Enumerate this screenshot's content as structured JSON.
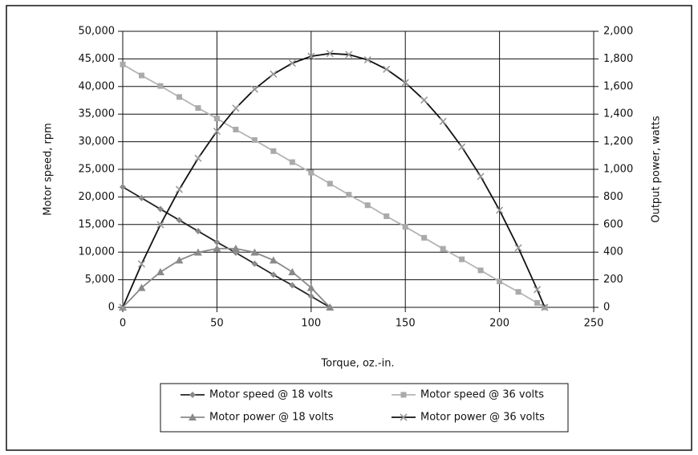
{
  "chart_data": {
    "type": "line",
    "xlabel": "Torque, oz.-in.",
    "ylabel": "Motor speed, rpm",
    "y2label": "Output power, watts",
    "xlim": [
      0,
      250
    ],
    "xticks": [
      0,
      50,
      100,
      150,
      200,
      250
    ],
    "ylim": [
      0,
      50000
    ],
    "yticks": [
      0,
      {
        "value": 5000,
        "label": "5,000"
      },
      {
        "value": 10000,
        "label": "10,000"
      },
      {
        "value": 15000,
        "label": "15,000"
      },
      {
        "value": 20000,
        "label": "20,000"
      },
      {
        "value": 25000,
        "label": "25,000"
      },
      {
        "value": 30000,
        "label": "30,000"
      },
      {
        "value": 35000,
        "label": "35,000"
      },
      {
        "value": 40000,
        "label": "40,000"
      },
      {
        "value": 45000,
        "label": "45,000"
      },
      {
        "value": 50000,
        "label": "50,000"
      }
    ],
    "y2lim": [
      0,
      2000
    ],
    "y2ticks": [
      0,
      200,
      400,
      600,
      800,
      {
        "value": 1000,
        "label": "1,000"
      },
      {
        "value": 1200,
        "label": "1,200"
      },
      {
        "value": 1400,
        "label": "1,400"
      },
      {
        "value": 1600,
        "label": "1,600"
      },
      {
        "value": 1800,
        "label": "1,800"
      },
      {
        "value": 2000,
        "label": "2,000"
      }
    ],
    "grid": true,
    "legend": "bottom",
    "series": [
      {
        "name": "Motor speed @ 18 volts",
        "color": "#8a8a8a",
        "line_color": "#222222",
        "marker": "diamond",
        "axis": "y",
        "x": [
          0,
          10,
          20,
          30,
          40,
          50,
          60,
          70,
          80,
          90,
          100,
          110
        ],
        "values": [
          21800,
          19800,
          17800,
          15800,
          13800,
          11800,
          9900,
          7900,
          5900,
          4000,
          2000,
          0
        ]
      },
      {
        "name": "Motor speed @ 36 volts",
        "color": "#aaaaaa",
        "line_color": "#b4b4b4",
        "marker": "square",
        "axis": "y",
        "x": [
          0,
          10,
          20,
          30,
          40,
          50,
          60,
          70,
          80,
          90,
          100,
          110,
          120,
          130,
          140,
          150,
          160,
          170,
          180,
          190,
          200,
          210,
          220,
          224
        ],
        "values": [
          44000,
          42000,
          40100,
          38100,
          36100,
          34200,
          32200,
          30300,
          28300,
          26300,
          24400,
          22400,
          20400,
          18500,
          16500,
          14600,
          12600,
          10600,
          8700,
          6700,
          4700,
          2800,
          800,
          0
        ]
      },
      {
        "name": "Motor power @ 18 volts",
        "color": "#8a8a8a",
        "line_color": "#8a8a8a",
        "marker": "triangle",
        "axis": "y2",
        "x": [
          0,
          10,
          20,
          30,
          40,
          50,
          60,
          70,
          80,
          90,
          100,
          110
        ],
        "values": [
          0,
          142,
          256,
          341,
          398,
          426,
          426,
          398,
          341,
          256,
          142,
          0
        ]
      },
      {
        "name": "Motor power @ 36 volts",
        "color": "#999999",
        "line_color": "#111111",
        "marker": "x",
        "axis": "y2",
        "x": [
          0,
          10,
          20,
          30,
          40,
          50,
          60,
          70,
          80,
          90,
          100,
          110,
          120,
          130,
          140,
          150,
          160,
          170,
          180,
          190,
          200,
          210,
          220,
          224
        ],
        "values": [
          0,
          314,
          599,
          854,
          1080,
          1276,
          1443,
          1581,
          1690,
          1769,
          1819,
          1839,
          1831,
          1793,
          1725,
          1628,
          1502,
          1347,
          1162,
          948,
          704,
          431,
          129,
          0
        ]
      }
    ]
  }
}
